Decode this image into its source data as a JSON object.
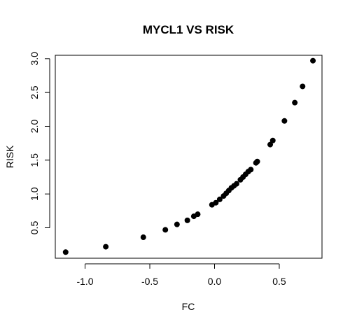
{
  "chart_data": {
    "type": "scatter",
    "title": "MYCL1 VS RISK",
    "xlabel": "FC",
    "ylabel": "RISK",
    "xlim": [
      -1.23,
      0.83
    ],
    "ylim": [
      0.05,
      3.05
    ],
    "xticks": [
      -1.0,
      -0.5,
      0.0,
      0.5
    ],
    "xtick_labels": [
      "-1.0",
      "-0.5",
      "0.0",
      "0.5"
    ],
    "yticks": [
      0.5,
      1.0,
      1.5,
      2.0,
      2.5,
      3.0
    ],
    "ytick_labels": [
      "0.5",
      "1.0",
      "1.5",
      "2.0",
      "2.5",
      "3.0"
    ],
    "grid": false,
    "series": [
      {
        "color": "#000000",
        "x": [
          -1.15,
          -0.84,
          -0.55,
          -0.38,
          -0.29,
          -0.21,
          -0.16,
          -0.13,
          -0.02,
          0.01,
          0.04,
          0.07,
          0.09,
          0.11,
          0.13,
          0.15,
          0.17,
          0.2,
          0.22,
          0.24,
          0.26,
          0.28,
          0.32,
          0.33,
          0.43,
          0.45,
          0.54,
          0.62,
          0.68,
          0.76
        ],
        "y": [
          0.14,
          0.22,
          0.36,
          0.47,
          0.55,
          0.61,
          0.67,
          0.7,
          0.84,
          0.87,
          0.92,
          0.97,
          1.01,
          1.05,
          1.09,
          1.12,
          1.15,
          1.21,
          1.25,
          1.29,
          1.33,
          1.36,
          1.46,
          1.48,
          1.73,
          1.79,
          2.08,
          2.35,
          2.59,
          2.97
        ]
      }
    ]
  }
}
